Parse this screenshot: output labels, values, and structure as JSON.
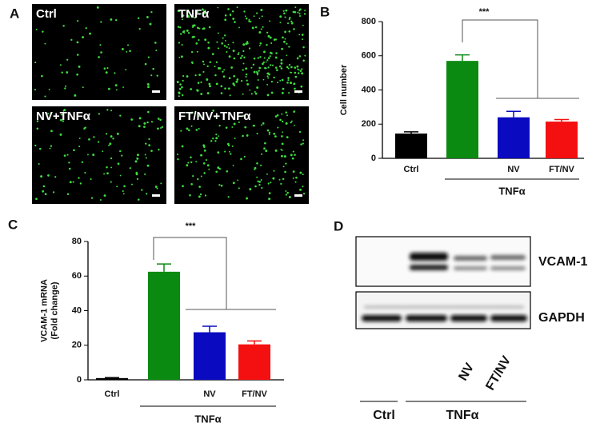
{
  "panel_labels": [
    "A",
    "B",
    "C",
    "D"
  ],
  "images": [
    {
      "label": "Ctrl"
    },
    {
      "label": "TNFα"
    },
    {
      "label": "NV+TNFα"
    },
    {
      "label": "FT/NV+TNFα"
    }
  ],
  "chart_data": [
    {
      "type": "bar",
      "ylabel": [
        "Cell number"
      ],
      "categories": [
        "Ctrl",
        null,
        "NV",
        "FT/NV"
      ],
      "values": [
        145,
        570,
        240,
        215
      ],
      "errors": [
        10,
        35,
        35,
        12
      ],
      "colors": [
        "#000000",
        "#0b8a12",
        "#0a0ac0",
        "#f41010"
      ],
      "ylim": [
        0,
        800
      ],
      "yticks": [
        0,
        200,
        400,
        600,
        800
      ],
      "group_label": "TNFα",
      "significance": "***"
    },
    {
      "type": "bar",
      "ylabel": [
        "VCAM-1 mRNA",
        "(Fold change)"
      ],
      "categories": [
        "Ctrl",
        null,
        "NV",
        "FT/NV"
      ],
      "values": [
        1,
        62.5,
        27.5,
        20.5
      ],
      "errors": [
        0.3,
        4.5,
        3.5,
        2
      ],
      "colors": [
        "#000000",
        "#0b8a12",
        "#0a0ac0",
        "#f41010"
      ],
      "ylim": [
        0,
        80
      ],
      "yticks": [
        0,
        20,
        40,
        60,
        80
      ],
      "group_label": "TNFα",
      "significance": "***"
    }
  ],
  "blot": {
    "bands": [
      "VCAM-1",
      "GAPDH"
    ],
    "lanes": [
      "NV",
      "FT/NV"
    ],
    "groups": [
      "Ctrl",
      "TNFα"
    ]
  }
}
